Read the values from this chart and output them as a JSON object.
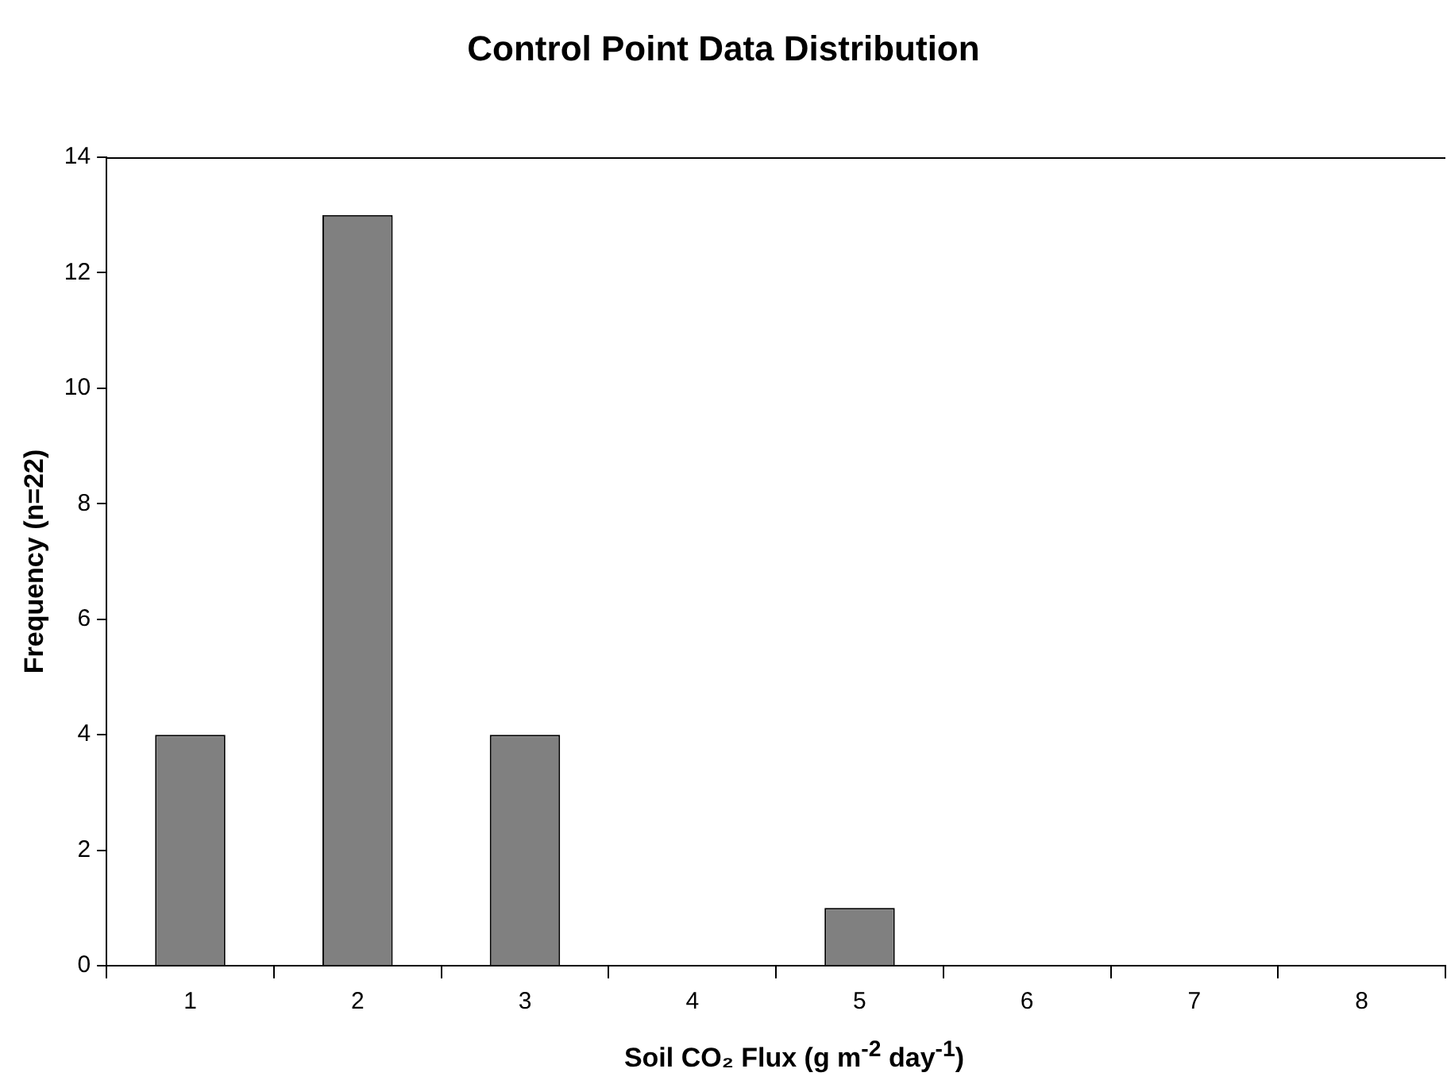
{
  "chart_data": {
    "type": "bar",
    "title": "Control Point Data Distribution",
    "xlabel": "Soil CO₂ Flux (g m$^{-2}$ day$^{-1}$)",
    "ylabel": "Frequency (n=22)",
    "categories": [
      "1",
      "2",
      "3",
      "4",
      "5",
      "6",
      "7",
      "8"
    ],
    "values": [
      4,
      13,
      4,
      0,
      1,
      0,
      0,
      0
    ],
    "color": "#808080",
    "ylim": [
      0,
      14
    ],
    "yticks": [
      0,
      2,
      4,
      6,
      8,
      10,
      12,
      14
    ],
    "grid": false,
    "legend": false
  }
}
